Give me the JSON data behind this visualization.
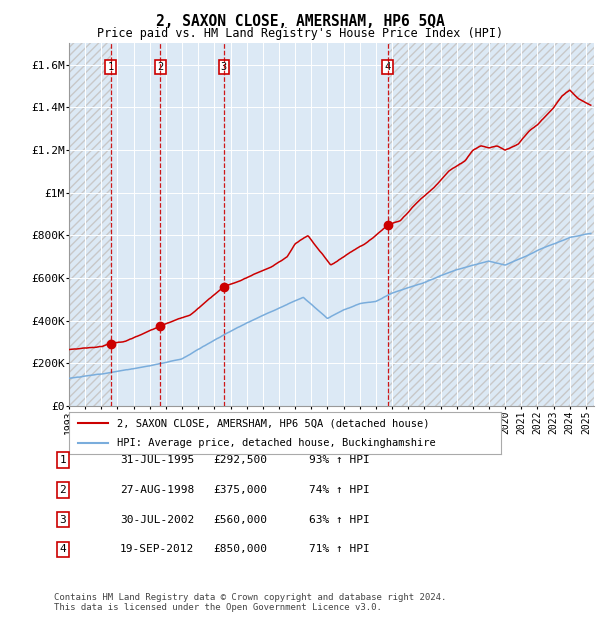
{
  "title": "2, SAXON CLOSE, AMERSHAM, HP6 5QA",
  "subtitle": "Price paid vs. HM Land Registry's House Price Index (HPI)",
  "sales": [
    {
      "date": 1995.58,
      "price": 292500,
      "label": "1"
    },
    {
      "date": 1998.66,
      "price": 375000,
      "label": "2"
    },
    {
      "date": 2002.58,
      "price": 560000,
      "label": "3"
    },
    {
      "date": 2012.72,
      "price": 850000,
      "label": "4"
    }
  ],
  "sale_color": "#cc0000",
  "hpi_color": "#7aaddc",
  "vline_color": "#cc0000",
  "ylim": [
    0,
    1700000
  ],
  "xlim": [
    1993.0,
    2025.5
  ],
  "bg_color": "#dce9f5",
  "hatch_color": "#c8c8c8",
  "legend_entries": [
    "2, SAXON CLOSE, AMERSHAM, HP6 5QA (detached house)",
    "HPI: Average price, detached house, Buckinghamshire"
  ],
  "table_rows": [
    [
      "1",
      "31-JUL-1995",
      "£292,500",
      "93% ↑ HPI"
    ],
    [
      "2",
      "27-AUG-1998",
      "£375,000",
      "74% ↑ HPI"
    ],
    [
      "3",
      "30-JUL-2002",
      "£560,000",
      "63% ↑ HPI"
    ],
    [
      "4",
      "19-SEP-2012",
      "£850,000",
      "71% ↑ HPI"
    ]
  ],
  "footnote": "Contains HM Land Registry data © Crown copyright and database right 2024.\nThis data is licensed under the Open Government Licence v3.0.",
  "ytick_labels": [
    "£0",
    "£200K",
    "£400K",
    "£600K",
    "£800K",
    "£1M",
    "£1.2M",
    "£1.4M",
    "£1.6M"
  ],
  "ytick_values": [
    0,
    200000,
    400000,
    600000,
    800000,
    1000000,
    1200000,
    1400000,
    1600000
  ]
}
